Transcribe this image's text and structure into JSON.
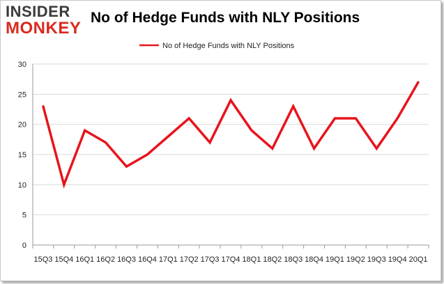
{
  "logo": {
    "line1": "INSIDER",
    "line2": "MONKEY"
  },
  "colors": {
    "series": "#e8141c",
    "grid": "#d9d9d9",
    "axis": "#999999"
  },
  "chart_data": {
    "type": "line",
    "title": "No of Hedge Funds with NLY Positions",
    "xlabel": "",
    "ylabel": "",
    "ylim": [
      0,
      30
    ],
    "yticks": [
      0,
      5,
      10,
      15,
      20,
      25,
      30
    ],
    "grid": true,
    "legend_position": "top-center",
    "categories": [
      "15Q3",
      "15Q4",
      "16Q1",
      "16Q2",
      "16Q3",
      "16Q4",
      "17Q1",
      "17Q2",
      "17Q3",
      "17Q4",
      "18Q1",
      "18Q2",
      "18Q3",
      "18Q4",
      "19Q1",
      "19Q2",
      "19Q3",
      "19Q4",
      "20Q1"
    ],
    "series": [
      {
        "name": "No of Hedge Funds with NLY Positions",
        "values": [
          23,
          10,
          19,
          17,
          13,
          15,
          18,
          21,
          17,
          24,
          19,
          16,
          23,
          16,
          21,
          21,
          16,
          21,
          27
        ]
      }
    ]
  }
}
